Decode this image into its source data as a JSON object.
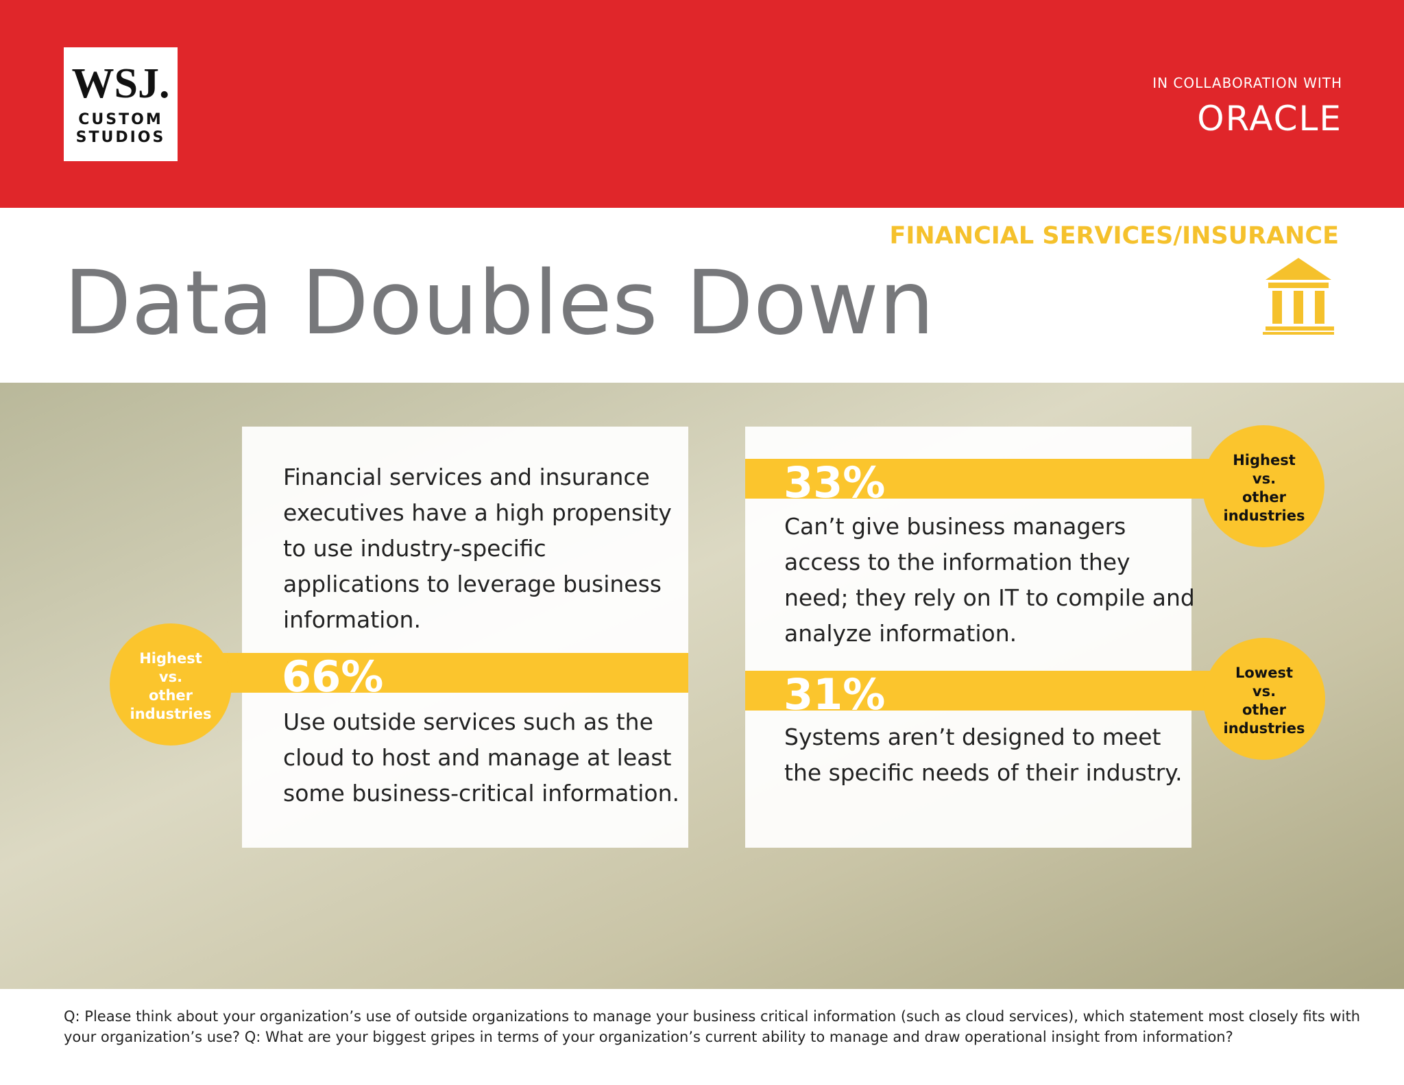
{
  "header": {
    "logo": {
      "line1": "WSJ.",
      "line2": "CUSTOM",
      "line3": "STUDIOS"
    },
    "collaboration": "IN COLLABORATION WITH",
    "partner": "ORACLE"
  },
  "category": "FINANCIAL SERVICES/INSURANCE",
  "title": "Data Doubles Down",
  "left_card": {
    "intro": [
      "Financial services and insurance",
      "executives have a high propensity",
      "to use industry-specific",
      "applications to leverage business",
      "information."
    ],
    "stat": "66%",
    "badge": [
      "Highest",
      "vs.",
      "other",
      "industries"
    ],
    "text": [
      "Use outside services such as the",
      "cloud to host and manage at least",
      "some business-critical information."
    ]
  },
  "right_card": {
    "stats": [
      {
        "stat": "33%",
        "badge": [
          "Highest",
          "vs.",
          "other",
          "industries"
        ],
        "text": [
          "Can’t give business managers",
          "access to the information they",
          "need; they rely on IT to compile and",
          "analyze information."
        ]
      },
      {
        "stat": "31%",
        "badge": [
          "Lowest",
          "vs.",
          "other",
          "industries"
        ],
        "text": [
          "Systems aren’t designed to meet",
          "the specific needs of their industry."
        ]
      }
    ]
  },
  "footnote": [
    "Q: Please think about your organization’s use of outside organizations to manage your business critical information (such as cloud services), which statement most closely fits with",
    "your organization’s use? Q: What are your biggest gripes in terms of your organization’s current ability to manage and draw operational insight from information?"
  ]
}
